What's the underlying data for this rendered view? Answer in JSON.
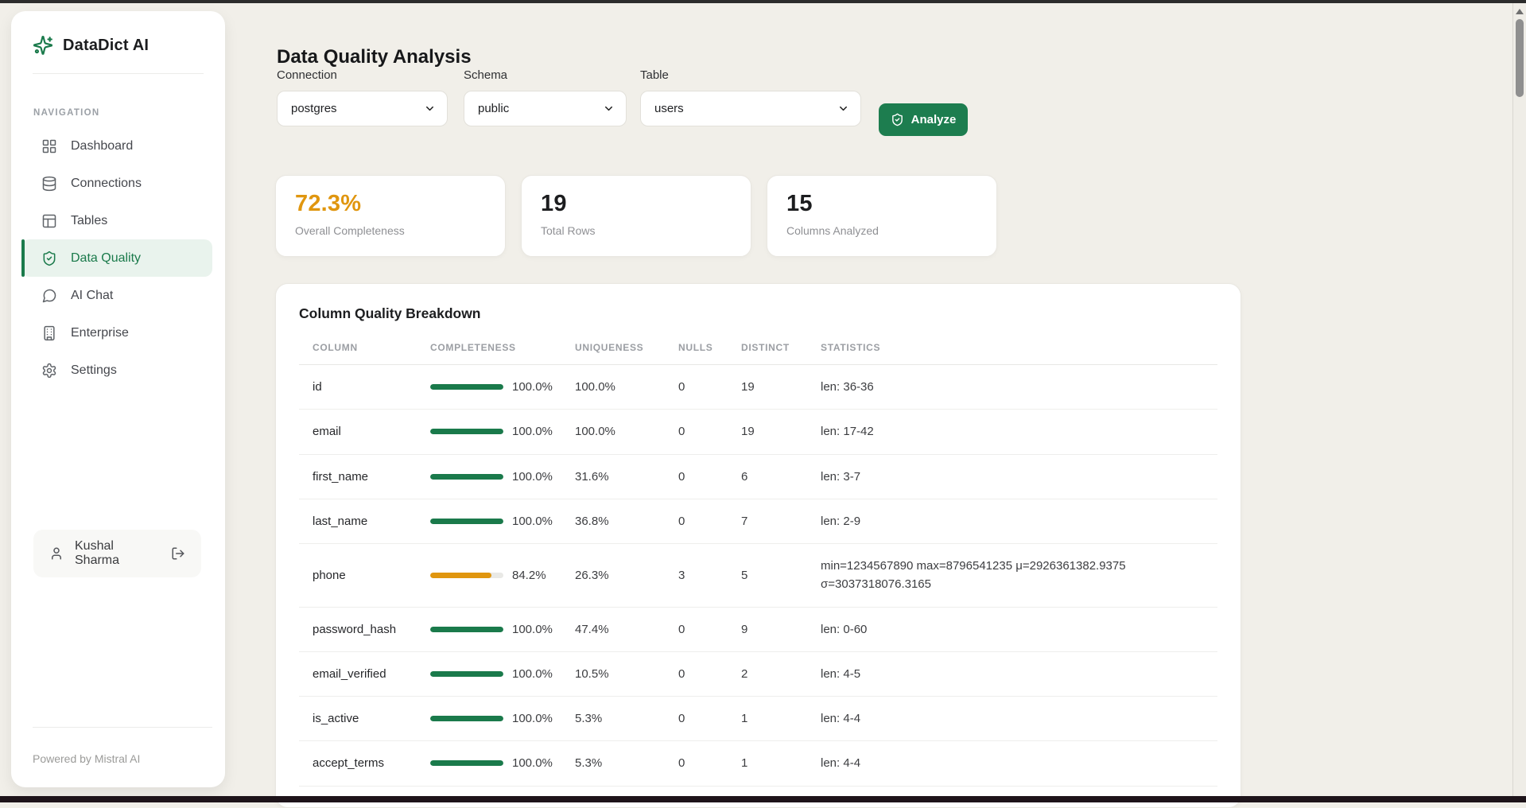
{
  "app": {
    "name": "DataDict AI",
    "powered_by": "Powered by Mistral AI"
  },
  "sidebar": {
    "section_label": "NAVIGATION",
    "items": [
      {
        "label": "Dashboard"
      },
      {
        "label": "Connections"
      },
      {
        "label": "Tables"
      },
      {
        "label": "Data Quality",
        "active": true
      },
      {
        "label": "AI Chat"
      },
      {
        "label": "Enterprise"
      },
      {
        "label": "Settings"
      }
    ],
    "user": {
      "name": "Kushal Sharma"
    }
  },
  "page": {
    "title": "Data Quality Analysis"
  },
  "filters": {
    "connection_label": "Connection",
    "connection_value": "postgres",
    "schema_label": "Schema",
    "schema_value": "public",
    "table_label": "Table",
    "table_value": "users",
    "analyze_label": "Analyze"
  },
  "stats": [
    {
      "value": "72.3%",
      "label": "Overall Completeness",
      "color": "#e0960f"
    },
    {
      "value": "19",
      "label": "Total Rows",
      "color": "#1c1d1f"
    },
    {
      "value": "15",
      "label": "Columns Analyzed",
      "color": "#1c1d1f"
    }
  ],
  "breakdown": {
    "title": "Column Quality Breakdown",
    "headers": [
      "COLUMN",
      "COMPLETENESS",
      "UNIQUENESS",
      "NULLS",
      "DISTINCT",
      "STATISTICS"
    ],
    "rows": [
      {
        "column": "id",
        "completeness": "100.0%",
        "completeness_pct": 100,
        "bar_color": "#1a7a4b",
        "uniqueness": "100.0%",
        "nulls": "0",
        "distinct": "19",
        "statistics": [
          "len: 36-36"
        ]
      },
      {
        "column": "email",
        "completeness": "100.0%",
        "completeness_pct": 100,
        "bar_color": "#1a7a4b",
        "uniqueness": "100.0%",
        "nulls": "0",
        "distinct": "19",
        "statistics": [
          "len: 17-42"
        ]
      },
      {
        "column": "first_name",
        "completeness": "100.0%",
        "completeness_pct": 100,
        "bar_color": "#1a7a4b",
        "uniqueness": "31.6%",
        "nulls": "0",
        "distinct": "6",
        "statistics": [
          "len: 3-7"
        ]
      },
      {
        "column": "last_name",
        "completeness": "100.0%",
        "completeness_pct": 100,
        "bar_color": "#1a7a4b",
        "uniqueness": "36.8%",
        "nulls": "0",
        "distinct": "7",
        "statistics": [
          "len: 2-9"
        ]
      },
      {
        "column": "phone",
        "completeness": "84.2%",
        "completeness_pct": 84.2,
        "bar_color": "#e0960f",
        "uniqueness": "26.3%",
        "nulls": "3",
        "distinct": "5",
        "statistics": [
          "min=1234567890 max=8796541235 μ=2926361382.9375",
          "σ=3037318076.3165"
        ]
      },
      {
        "column": "password_hash",
        "completeness": "100.0%",
        "completeness_pct": 100,
        "bar_color": "#1a7a4b",
        "uniqueness": "47.4%",
        "nulls": "0",
        "distinct": "9",
        "statistics": [
          "len: 0-60"
        ]
      },
      {
        "column": "email_verified",
        "completeness": "100.0%",
        "completeness_pct": 100,
        "bar_color": "#1a7a4b",
        "uniqueness": "10.5%",
        "nulls": "0",
        "distinct": "2",
        "statistics": [
          "len: 4-5"
        ]
      },
      {
        "column": "is_active",
        "completeness": "100.0%",
        "completeness_pct": 100,
        "bar_color": "#1a7a4b",
        "uniqueness": "5.3%",
        "nulls": "0",
        "distinct": "1",
        "statistics": [
          "len: 4-4"
        ]
      },
      {
        "column": "accept_terms",
        "completeness": "100.0%",
        "completeness_pct": 100,
        "bar_color": "#1a7a4b",
        "uniqueness": "5.3%",
        "nulls": "0",
        "distinct": "1",
        "statistics": [
          "len: 4-4"
        ]
      }
    ]
  },
  "colors": {
    "accent_green": "#1a7a4b",
    "accent_orange": "#e0960f",
    "background": "#f1efe9"
  }
}
